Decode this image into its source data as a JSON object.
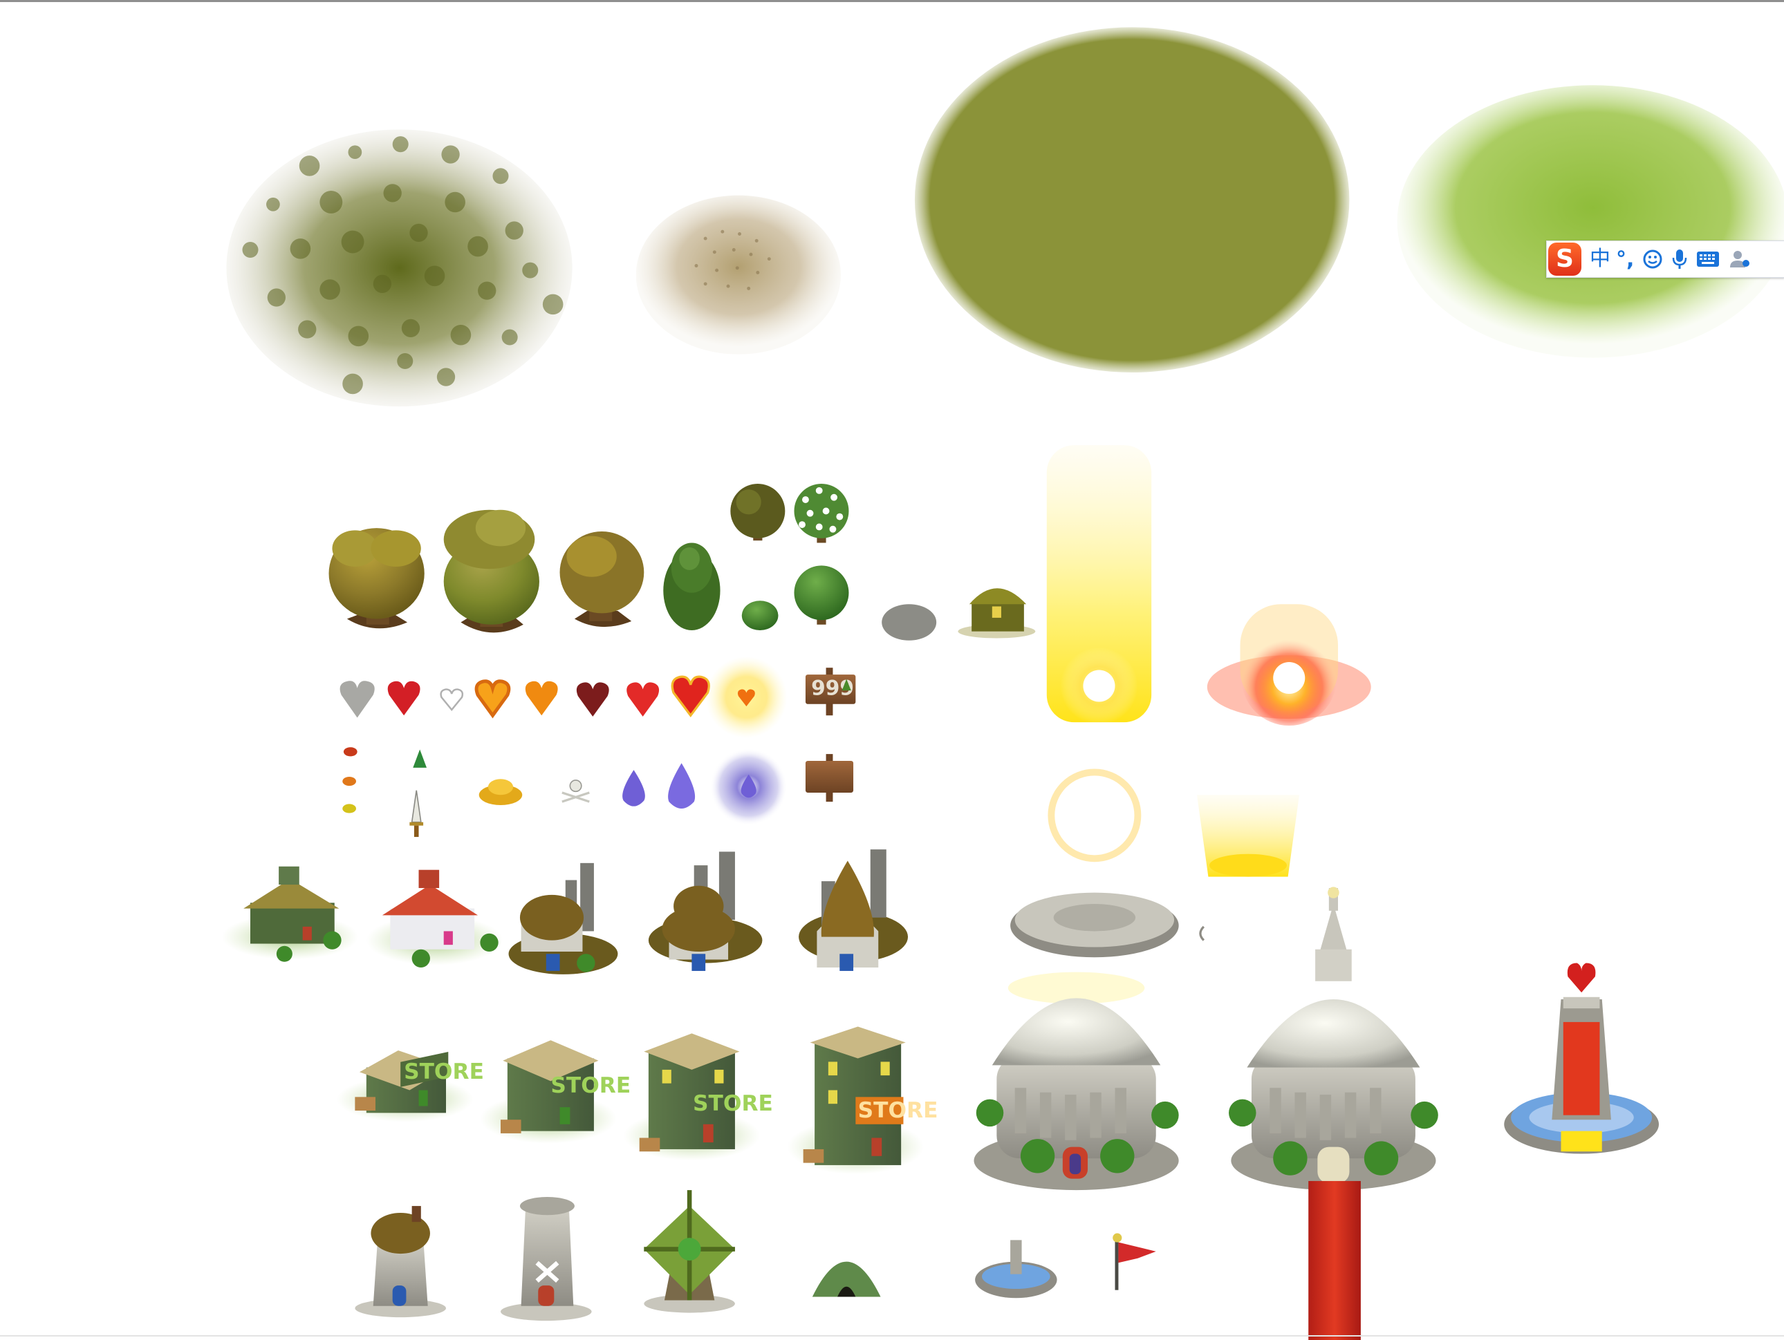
{
  "sign": {
    "value": "999"
  },
  "store_labels": [
    "STORE",
    "STORE",
    "STORE",
    "STORE"
  ],
  "ime_toolbar": {
    "logo": "S",
    "mode": "中",
    "punct": "°,",
    "icons": [
      "smiley-icon",
      "microphone-icon",
      "keyboard-icon",
      "user-icon"
    ]
  },
  "colors": {
    "grass_dark": "#6f7a2a",
    "grass_olive": "#8b9639",
    "grass_bright": "#8fbd3a",
    "heart_red": "#d4202a",
    "heart_orange": "#f08a10",
    "water_purple": "#6f5fd6",
    "light_yellow": "#fff45a",
    "carpet_red": "#c42a26",
    "ime_blue": "#1a73d9",
    "ime_orange": "#f0501c"
  }
}
